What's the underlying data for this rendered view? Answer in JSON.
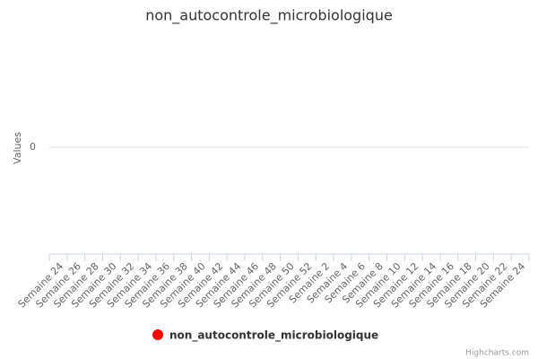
{
  "chart_data": {
    "type": "line",
    "title": "non_autocontrole_microbiologique",
    "y_label": "Values",
    "credit": "Highcharts.com",
    "categories": [
      "Semaine 24",
      "Semaine 26",
      "Semaine 28",
      "Semaine 30",
      "Semaine 32",
      "Semaine 34",
      "Semaine 36",
      "Semaine 38",
      "Semaine 40",
      "Semaine 42",
      "Semaine 44",
      "Semaine 46",
      "Semaine 48",
      "Semaine 50",
      "Semaine 52",
      "Semaine 2",
      "Semaine 4",
      "Semaine 6",
      "Semaine 8",
      "Semaine 10",
      "Semaine 12",
      "Semaine 14",
      "Semaine 16",
      "Semaine 18",
      "Semaine 20",
      "Semaine 22",
      "Semaine 24"
    ],
    "series": [
      {
        "name": "non_autocontrole_microbiologique",
        "color": "#ff0000",
        "values": [
          null,
          null,
          null,
          null,
          null,
          null,
          null,
          null,
          null,
          null,
          null,
          null,
          null,
          null,
          null,
          null,
          null,
          null,
          null,
          null,
          null,
          null,
          null,
          null,
          null,
          null,
          null
        ]
      }
    ],
    "ylim": [
      -1,
      1
    ],
    "yticks": [
      0
    ],
    "grid": true
  }
}
